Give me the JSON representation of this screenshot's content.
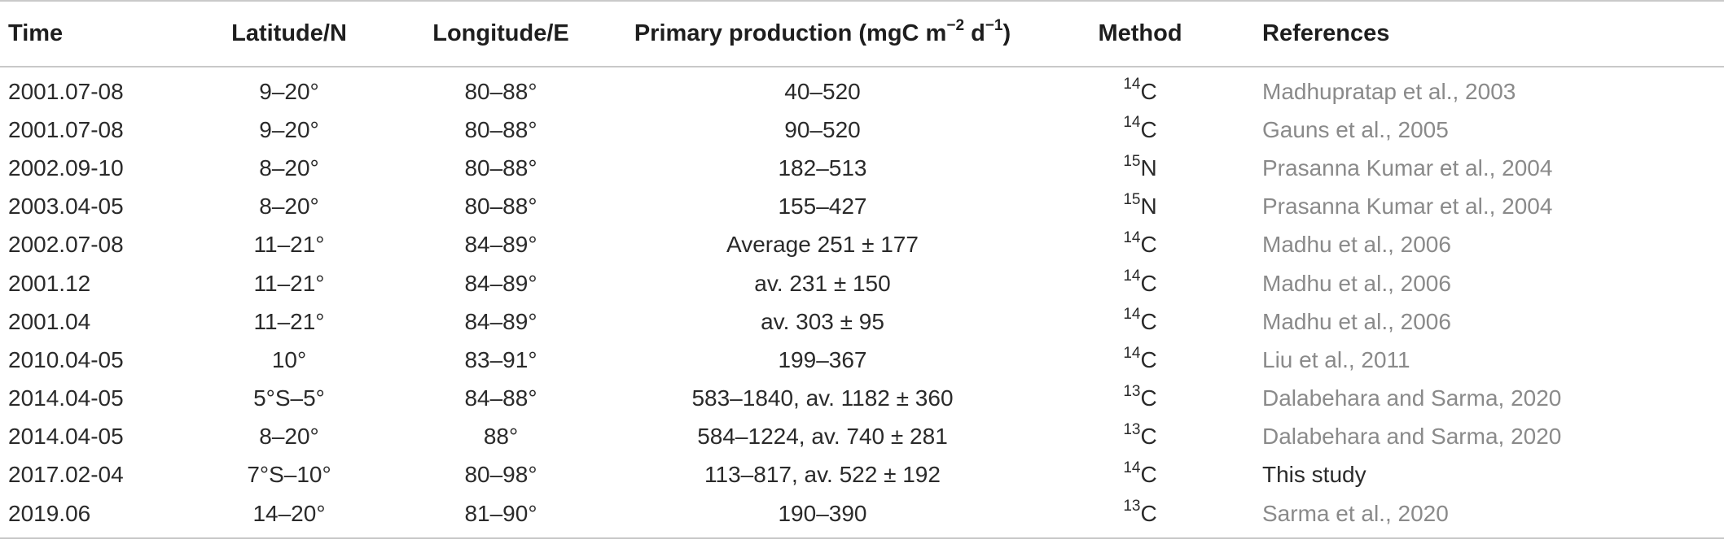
{
  "table": {
    "headers": {
      "time": "Time",
      "latitude": "Latitude/N",
      "longitude": "Longitude/E",
      "pp_prefix": "Primary production (mgC m",
      "pp_exp1": "−2",
      "pp_mid": " d",
      "pp_exp2": "−1",
      "pp_suffix": ")",
      "method": "Method",
      "references": "References"
    },
    "rows": [
      {
        "time": "2001.07-08",
        "lat": "9–20°",
        "lon": "80–88°",
        "pp": "40–520",
        "iso": "14",
        "el": "C",
        "ref": "Madhupratap et al., 2003",
        "ref_style": "link"
      },
      {
        "time": "2001.07-08",
        "lat": "9–20°",
        "lon": "80–88°",
        "pp": "90–520",
        "iso": "14",
        "el": "C",
        "ref": "Gauns et al., 2005",
        "ref_style": "link"
      },
      {
        "time": "2002.09-10",
        "lat": "8–20°",
        "lon": "80–88°",
        "pp": "182–513",
        "iso": "15",
        "el": "N",
        "ref": "Prasanna Kumar et al., 2004",
        "ref_style": "link"
      },
      {
        "time": "2003.04-05",
        "lat": "8–20°",
        "lon": "80–88°",
        "pp": "155–427",
        "iso": "15",
        "el": "N",
        "ref": "Prasanna Kumar et al., 2004",
        "ref_style": "link"
      },
      {
        "time": "2002.07-08",
        "lat": "11–21°",
        "lon": "84–89°",
        "pp": "Average 251 ± 177",
        "iso": "14",
        "el": "C",
        "ref": "Madhu et al., 2006",
        "ref_style": "link"
      },
      {
        "time": "2001.12",
        "lat": "11–21°",
        "lon": "84–89°",
        "pp": "av. 231 ± 150",
        "iso": "14",
        "el": "C",
        "ref": "Madhu et al., 2006",
        "ref_style": "link"
      },
      {
        "time": "2001.04",
        "lat": "11–21°",
        "lon": "84–89°",
        "pp": "av. 303 ± 95",
        "iso": "14",
        "el": "C",
        "ref": "Madhu et al., 2006",
        "ref_style": "link"
      },
      {
        "time": "2010.04-05",
        "lat": "10°",
        "lon": "83–91°",
        "pp": "199–367",
        "iso": "14",
        "el": "C",
        "ref": "Liu et al., 2011",
        "ref_style": "link"
      },
      {
        "time": "2014.04-05",
        "lat": "5°S–5°",
        "lon": "84–88°",
        "pp": "583–1840, av. 1182 ± 360",
        "iso": "13",
        "el": "C",
        "ref": "Dalabehara and Sarma, 2020",
        "ref_style": "link"
      },
      {
        "time": "2014.04-05",
        "lat": "8–20°",
        "lon": "88°",
        "pp": "584–1224, av. 740 ± 281",
        "iso": "13",
        "el": "C",
        "ref": "Dalabehara and Sarma, 2020",
        "ref_style": "link"
      },
      {
        "time": "2017.02-04",
        "lat": "7°S–10°",
        "lon": "80–98°",
        "pp": "113–817, av. 522 ± 192",
        "iso": "14",
        "el": "C",
        "ref": "This study",
        "ref_style": "plain"
      },
      {
        "time": "2019.06",
        "lat": "14–20°",
        "lon": "81–90°",
        "pp": "190–390",
        "iso": "13",
        "el": "C",
        "ref": "Sarma et al., 2020",
        "ref_style": "link"
      }
    ]
  }
}
